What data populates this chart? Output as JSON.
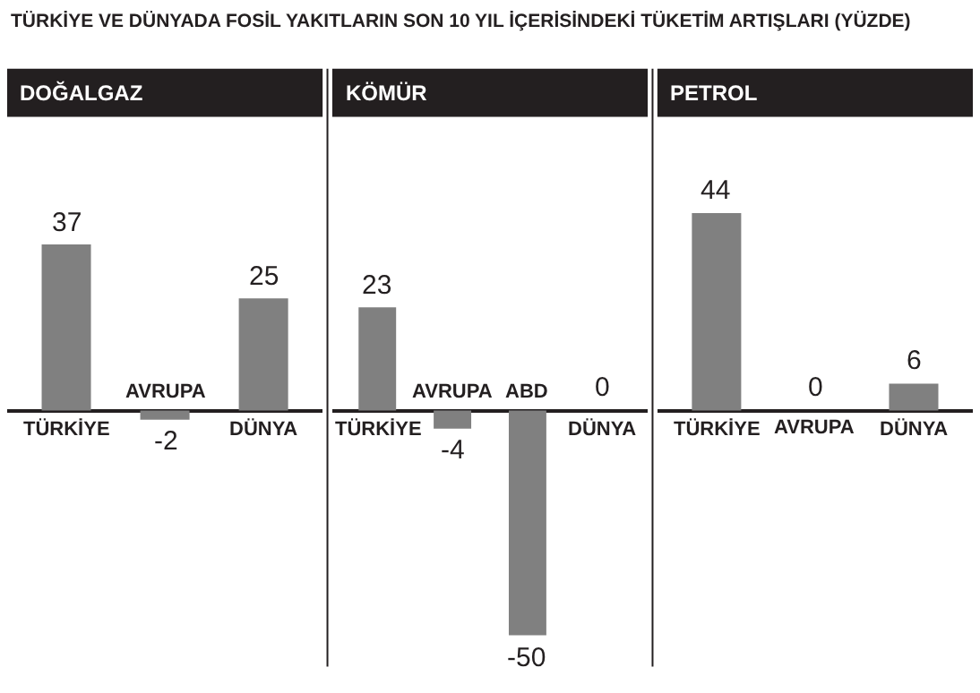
{
  "chart_data": [
    {
      "type": "bar",
      "title": "DOĞALGAZ",
      "categories": [
        "TÜRKİYE",
        "AVRUPA",
        "DÜNYA"
      ],
      "values": [
        37,
        -2,
        25
      ],
      "color": "#808080",
      "data_labels": true,
      "annotations": [
        "TÜRKİYE VE DÜNYADA FOSİL YAKITLARIN SON 10 YIL İÇERİSİNDEKİ TÜKETİM ARTIŞLARI (YÜZDE)"
      ]
    },
    {
      "type": "bar",
      "title": "KÖMÜR",
      "categories": [
        "TÜRKİYE",
        "AVRUPA",
        "ABD",
        "DÜNYA"
      ],
      "values": [
        23,
        -4,
        -50,
        0
      ],
      "color": "#808080",
      "data_labels": true
    },
    {
      "type": "bar",
      "title": "PETROL",
      "categories": [
        "TÜRKİYE",
        "AVRUPA",
        "DÜNYA"
      ],
      "values": [
        44,
        0,
        6
      ],
      "color": "#808080",
      "data_labels": true
    }
  ]
}
